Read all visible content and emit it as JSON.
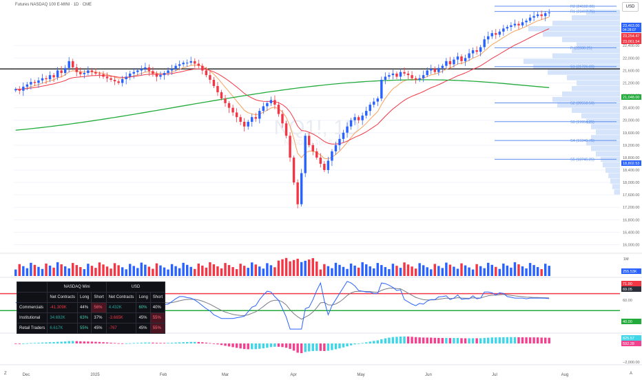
{
  "header": {
    "title": "Futures NASDAQ 100 E-MINI · 1D · CME",
    "currency_button": "USD"
  },
  "watermark": {
    "symbol": "NQ1!, 1D",
    "name": "NASDAQ 100 E-MINI"
  },
  "colors": {
    "up": "#2962ff",
    "down": "#f23645",
    "ema_fast": "#f7a35c",
    "ema_slow": "#f23645",
    "sma_long": "#22ab3b",
    "pivot_line": "#5b8def",
    "volume_profile": "#d6e4fb",
    "oscillator": "#2962ff",
    "oscillator_signal": "#787b86",
    "macd_pos": "#41d5e8",
    "macd_neg": "#f2418f"
  },
  "chart_data": [
    {
      "type": "candlestick",
      "title": "Futures NASDAQ 100 E-MINI · 1D · CME",
      "x_labels": [
        "Dec",
        "2025",
        "Feb",
        "Mar",
        "Apr",
        "May",
        "Jun",
        "Jul",
        "Aug"
      ],
      "y_axis_ticks": [
        "22,400.00",
        "22,000.00",
        "21,600.00",
        "21,200.00",
        "20,800.00",
        "20,400.00",
        "20,000.00",
        "19,600.00",
        "19,200.00",
        "18,800.00",
        "18,400.00",
        "18,000.00",
        "17,600.00",
        "17,200.00",
        "16,800.00",
        "16,400.00",
        "16,000.00"
      ],
      "ylim": [
        15900,
        23600
      ],
      "closes": [
        21000,
        20950,
        21080,
        21150,
        21230,
        21200,
        21280,
        21350,
        21320,
        21450,
        21380,
        21600,
        21520,
        21680,
        21900,
        21700,
        21550,
        21480,
        21520,
        21600,
        21550,
        21500,
        21480,
        21400,
        21350,
        21300,
        21250,
        21200,
        21320,
        21400,
        21500,
        21550,
        21600,
        21650,
        21700,
        21580,
        21500,
        21400,
        21450,
        21520,
        21600,
        21650,
        21750,
        21800,
        21850,
        21850,
        21900,
        21820,
        21750,
        21600,
        21450,
        21300,
        21100,
        20900,
        20700,
        20550,
        20400,
        20250,
        20100,
        19950,
        19800,
        19950,
        20100,
        20050,
        20300,
        20450,
        20550,
        20650,
        20500,
        20200,
        19900,
        19500,
        18800,
        18000,
        17300,
        18300,
        19500,
        19200,
        19000,
        18800,
        18600,
        18400,
        18700,
        19000,
        19200,
        19400,
        19600,
        19800,
        20000,
        20100,
        20000,
        20150,
        20300,
        20500,
        20600,
        20700,
        21300,
        21400,
        21450,
        21500,
        21400,
        21550,
        21500,
        21450,
        21350,
        21300,
        21350,
        21450,
        21600,
        21650,
        21550,
        21680,
        21750,
        21900,
        21800,
        21950,
        22050,
        21900,
        22000,
        22150,
        22250,
        22200,
        22350,
        22600,
        22700,
        22800,
        22750,
        22850,
        22950,
        23000,
        23050,
        23100,
        23050,
        23150,
        23200,
        23300,
        23350,
        23400,
        23350,
        23440,
        23463
      ],
      "price_labels": [
        {
          "text": "23,463.00",
          "sub": "04:28:07",
          "color": "#2962ff"
        },
        {
          "text": "23,254.47",
          "color": "#f23645"
        },
        {
          "text": "23,061.54",
          "color": "#f23645"
        },
        {
          "text": "21,048.00",
          "color": "#22ab3b"
        },
        {
          "text": "18,802.53",
          "color": "#2962ff"
        }
      ],
      "horizontal_line": 21650,
      "long_ma": {
        "start": 19680,
        "end": 21048
      }
    },
    {
      "type": "pivot_levels",
      "levels": [
        {
          "label": "R2 (24102.00)",
          "value": 24102.0
        },
        {
          "label": "R1 (23497.75)",
          "value": 23497.75
        },
        {
          "label": "P (22330.25)",
          "value": 22330.25
        },
        {
          "label": "S1 (21726.00)",
          "value": 21726.0
        },
        {
          "label": "S2 (20558.50)",
          "value": 20558.5
        },
        {
          "label": "S3 (19954.25)",
          "value": 19954.25
        },
        {
          "label": "S4 (19349.75)",
          "value": 19349.75
        },
        {
          "label": "S5 (18745.25)",
          "value": 18745.25
        }
      ]
    },
    {
      "type": "bar",
      "title": "Volume",
      "axis_label": "1M",
      "current_label": "255.53K"
    },
    {
      "type": "line",
      "title": "Oscillator",
      "y_axis_ticks": [
        "90.00",
        "60.00"
      ],
      "upper_band": 71.9,
      "lower_band": 40.0,
      "labels": [
        "71.90",
        "69.05",
        "40.00"
      ]
    },
    {
      "type": "bar",
      "title": "MACD histogram",
      "y_axis_ticks": [
        "−2,000.00"
      ],
      "labels": [
        {
          "text": "825.57",
          "color": "#41d5e8"
        },
        {
          "text": "592.28",
          "color": "#f2418f"
        }
      ]
    }
  ],
  "cot_table": {
    "headers": [
      "",
      "NASDAQ Mini",
      "",
      "",
      "USD",
      "",
      ""
    ],
    "subheaders": [
      "",
      "Net Contracts",
      "Long",
      "Short",
      "Net Contracts",
      "Long",
      "Short"
    ],
    "rows": [
      {
        "name": "Commercials",
        "net1": "-41.309K",
        "long1": "44%",
        "short1": "56%",
        "net2": "4.432K",
        "long2": "60%",
        "short2": "40%"
      },
      {
        "name": "Institutional",
        "net1": "34.692K",
        "long1": "63%",
        "short1": "37%",
        "net2": "-3.665K",
        "long2": "45%",
        "short2": "55%"
      },
      {
        "name": "Retail Traders",
        "net1": "6.617K",
        "long1": "55%",
        "short1": "45%",
        "net2": "-767",
        "long2": "45%",
        "short2": "55%"
      }
    ]
  },
  "corner_labels": {
    "left": "Z",
    "right": "A"
  }
}
